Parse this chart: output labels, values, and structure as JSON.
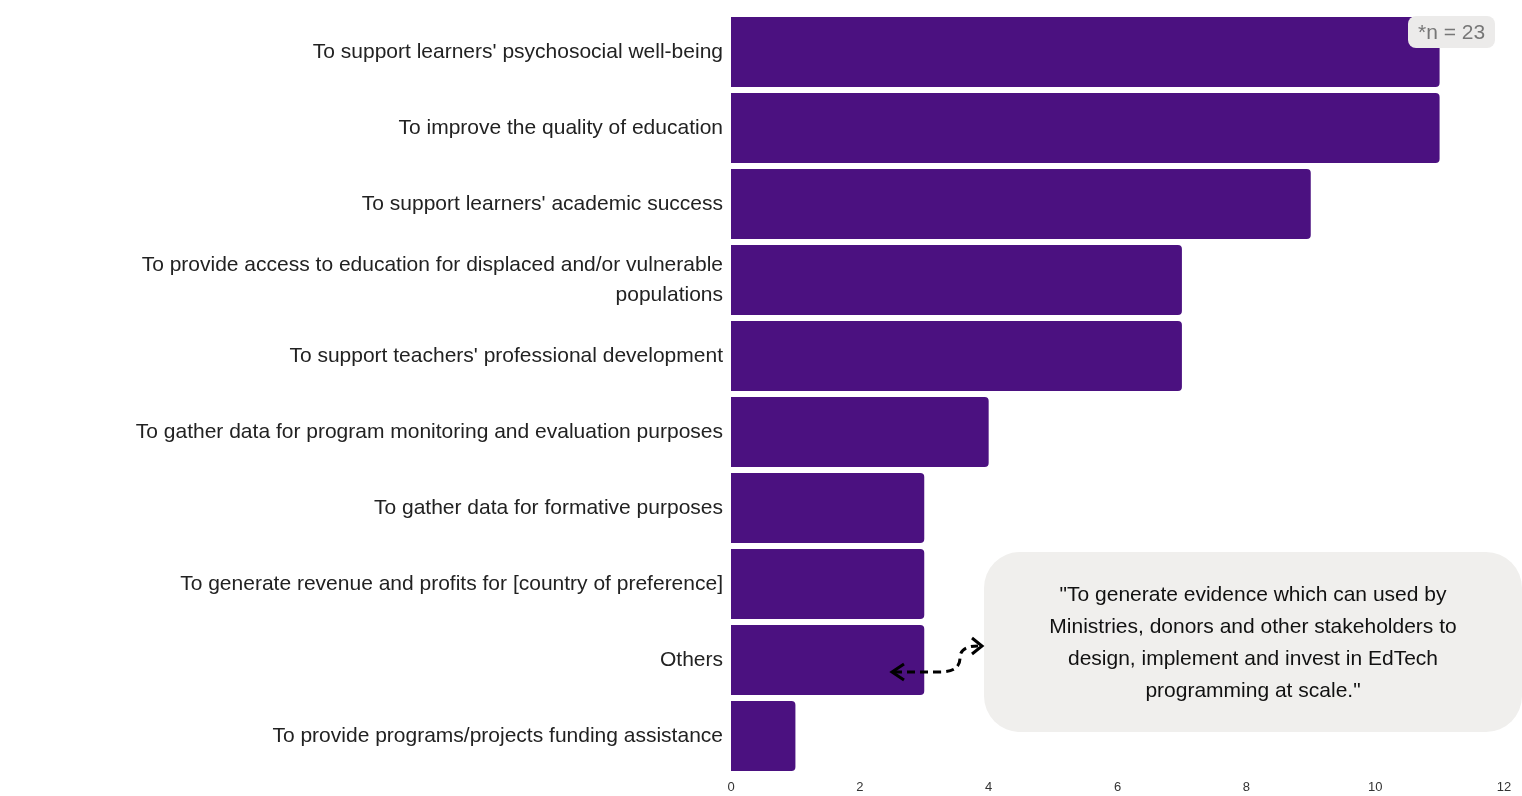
{
  "chart_data": {
    "type": "bar",
    "orientation": "horizontal",
    "categories": [
      "To support learners' psychosocial well-being",
      "To improve the quality of education",
      "To support learners' academic success",
      "To provide access to education for displaced and/or vulnerable populations",
      "To support teachers' professional development",
      "To gather data for program monitoring and evaluation purposes",
      "To gather data for formative purposes",
      "To generate revenue and profits for [country of preference]",
      "Others",
      "To provide programs/projects funding assistance"
    ],
    "values": [
      11,
      11,
      9,
      7,
      7,
      4,
      3,
      3,
      3,
      1
    ],
    "color": "#4b1180",
    "xlim": [
      0,
      12
    ],
    "xticks": [
      0,
      2,
      4,
      6,
      8,
      10,
      12
    ],
    "annotations": [
      "*n = 23",
      "\"To generate evidence which can used by Ministries, donors and other stakeholders to design, implement and invest in EdTech programming at scale.\""
    ]
  }
}
